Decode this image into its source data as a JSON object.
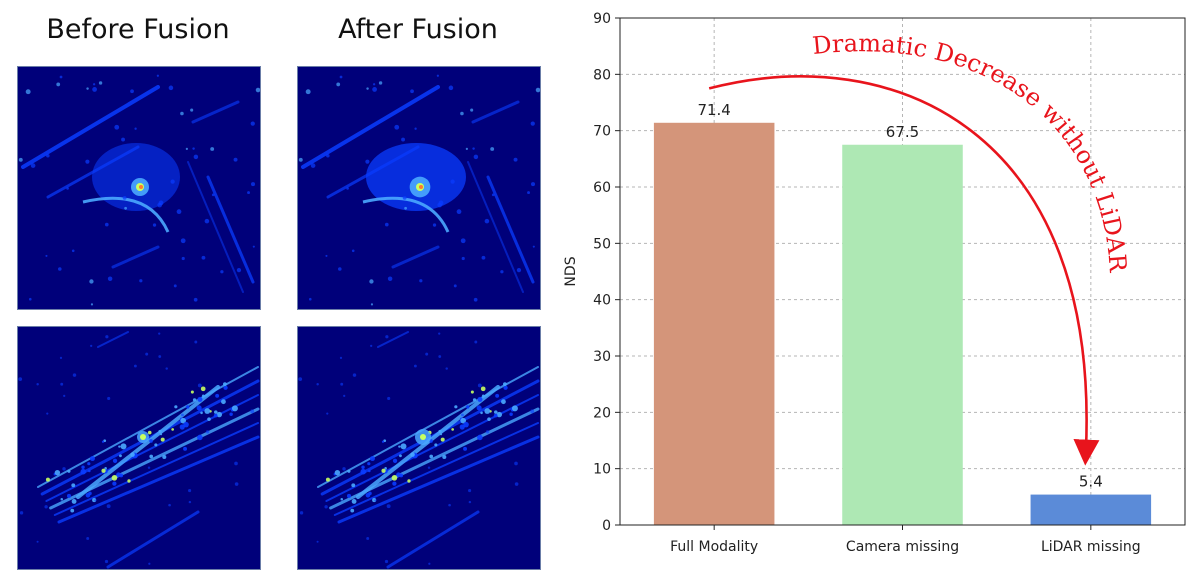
{
  "left_panel": {
    "before_title": "Before Fusion",
    "after_title": "After Fusion",
    "colormap": {
      "background": "#00007a",
      "low": "#0a3cff",
      "mid": "#4aa8ff",
      "high": "#c8ff60",
      "peak": "#ff7a30"
    }
  },
  "chart_data": {
    "type": "bar",
    "categories": [
      "Full Modality",
      "Camera missing",
      "LiDAR missing"
    ],
    "values": [
      71.4,
      67.5,
      5.4
    ],
    "value_labels": [
      "71.4",
      "67.5",
      "5.4"
    ],
    "bar_colors": [
      "#d4957a",
      "#aee8b4",
      "#5b8bd8"
    ],
    "title": "",
    "xlabel": "",
    "ylabel": "NDS",
    "ylim": [
      0,
      90
    ],
    "yticks": [
      0,
      10,
      20,
      30,
      40,
      50,
      60,
      70,
      80,
      90
    ],
    "grid": true,
    "annotation": {
      "text": "Dramatic Decrease without LiDAR",
      "color": "#e8141c"
    }
  }
}
